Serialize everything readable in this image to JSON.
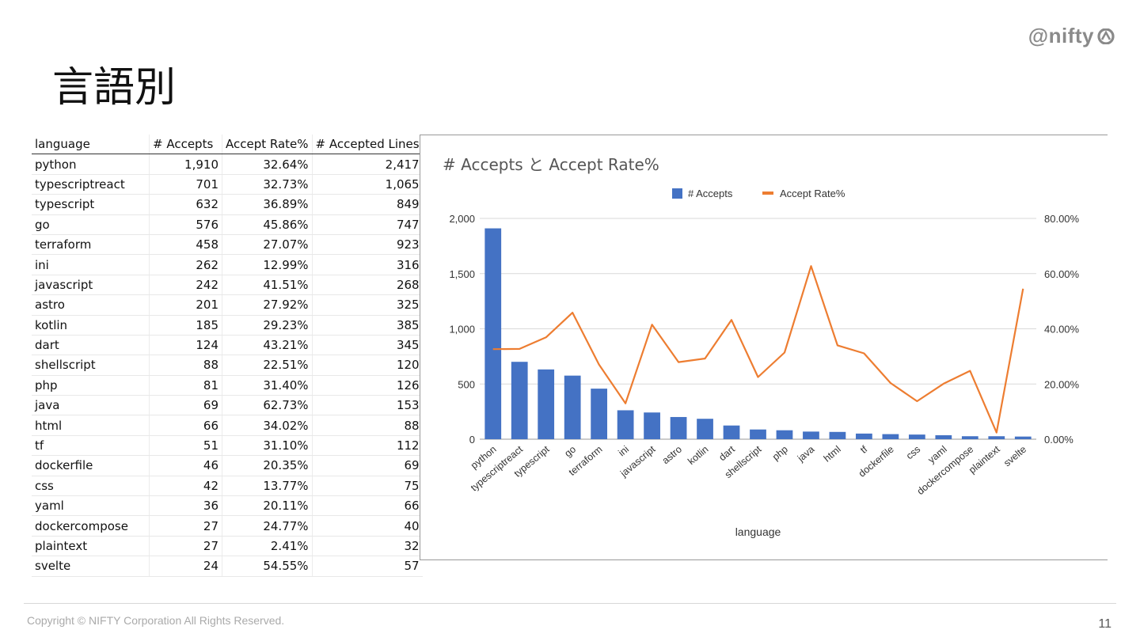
{
  "header": {
    "logo_text": "@nifty",
    "title": "言語別"
  },
  "table": {
    "columns": [
      "language",
      "# Accepts",
      "Accept Rate%",
      "# Accepted Lines"
    ],
    "rows": [
      [
        "python",
        "1,910",
        "32.64%",
        "2,417"
      ],
      [
        "typescriptreact",
        "701",
        "32.73%",
        "1,065"
      ],
      [
        "typescript",
        "632",
        "36.89%",
        "849"
      ],
      [
        "go",
        "576",
        "45.86%",
        "747"
      ],
      [
        "terraform",
        "458",
        "27.07%",
        "923"
      ],
      [
        "ini",
        "262",
        "12.99%",
        "316"
      ],
      [
        "javascript",
        "242",
        "41.51%",
        "268"
      ],
      [
        "astro",
        "201",
        "27.92%",
        "325"
      ],
      [
        "kotlin",
        "185",
        "29.23%",
        "385"
      ],
      [
        "dart",
        "124",
        "43.21%",
        "345"
      ],
      [
        "shellscript",
        "88",
        "22.51%",
        "120"
      ],
      [
        "php",
        "81",
        "31.40%",
        "126"
      ],
      [
        "java",
        "69",
        "62.73%",
        "153"
      ],
      [
        "html",
        "66",
        "34.02%",
        "88"
      ],
      [
        "tf",
        "51",
        "31.10%",
        "112"
      ],
      [
        "dockerfile",
        "46",
        "20.35%",
        "69"
      ],
      [
        "css",
        "42",
        "13.77%",
        "75"
      ],
      [
        "yaml",
        "36",
        "20.11%",
        "66"
      ],
      [
        "dockercompose",
        "27",
        "24.77%",
        "40"
      ],
      [
        "plaintext",
        "27",
        "2.41%",
        "32"
      ],
      [
        "svelte",
        "24",
        "54.55%",
        "57"
      ]
    ]
  },
  "chart_data": {
    "type": "bar",
    "title": "# Accepts と Accept Rate%",
    "xlabel": "language",
    "ylabel": "",
    "categories": [
      "python",
      "typescriptreact",
      "typescript",
      "go",
      "terraform",
      "ini",
      "javascript",
      "astro",
      "kotlin",
      "dart",
      "shellscript",
      "php",
      "java",
      "html",
      "tf",
      "dockerfile",
      "css",
      "yaml",
      "dockercompose",
      "plaintext",
      "svelte"
    ],
    "series": [
      {
        "name": "# Accepts",
        "type": "bar",
        "axis": "left",
        "color": "#4472c4",
        "values": [
          1910,
          701,
          632,
          576,
          458,
          262,
          242,
          201,
          185,
          124,
          88,
          81,
          69,
          66,
          51,
          46,
          42,
          36,
          27,
          27,
          24
        ]
      },
      {
        "name": "Accept Rate%",
        "type": "line",
        "axis": "right",
        "color": "#ed7d31",
        "values": [
          32.64,
          32.73,
          36.89,
          45.86,
          27.07,
          12.99,
          41.51,
          27.92,
          29.23,
          43.21,
          22.51,
          31.4,
          62.73,
          34.02,
          31.1,
          20.35,
          13.77,
          20.11,
          24.77,
          2.41,
          54.55
        ]
      }
    ],
    "ylim": [
      0,
      2000
    ],
    "y2lim": [
      0,
      80
    ],
    "y_ticks": [
      "0",
      "500",
      "1,000",
      "1,500",
      "2,000"
    ],
    "y2_ticks": [
      "0.00%",
      "20.00%",
      "40.00%",
      "60.00%",
      "80.00%"
    ],
    "legend": "top-center",
    "grid": true
  },
  "footer": {
    "copyright": "Copyright © NIFTY Corporation All Rights Reserved.",
    "page_number": "11"
  }
}
